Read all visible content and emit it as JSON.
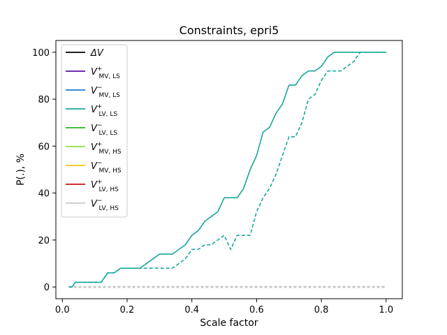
{
  "chart_data": {
    "type": "line",
    "title": "Constraints, epri5",
    "xlabel": "Scale factor",
    "ylabel": "P(.), %",
    "xlim": [
      -0.02,
      1.05
    ],
    "ylim": [
      -5,
      105
    ],
    "xticks": [
      0.0,
      0.2,
      0.4,
      0.6,
      0.8,
      1.0
    ],
    "xtick_labels": [
      "0.0",
      "0.2",
      "0.4",
      "0.6",
      "0.8",
      "1.0"
    ],
    "yticks": [
      0,
      20,
      40,
      60,
      80,
      100
    ],
    "ytick_labels": [
      "0",
      "20",
      "40",
      "60",
      "80",
      "100"
    ],
    "grid": false,
    "legend_position": "upper-left",
    "legend": [
      {
        "base": "ΔV",
        "sup": "",
        "sub": "",
        "color": "#000000"
      },
      {
        "base": "V",
        "sup": "+",
        "sub": "MV, LS",
        "color": "#5a0fa0"
      },
      {
        "base": "V",
        "sup": "−",
        "sub": "MV, LS",
        "color": "#1f77d4"
      },
      {
        "base": "V",
        "sup": "+",
        "sub": "LV, LS",
        "color": "#14a89a"
      },
      {
        "base": "V",
        "sup": "−",
        "sub": "LV, LS",
        "color": "#22b522"
      },
      {
        "base": "V",
        "sup": "+",
        "sub": "MV, HS",
        "color": "#8ee03a"
      },
      {
        "base": "V",
        "sup": "−",
        "sub": "MV, HS",
        "color": "#f2c418"
      },
      {
        "base": "V",
        "sup": "+",
        "sub": "LV, HS",
        "color": "#cc1111"
      },
      {
        "base": "V",
        "sup": "−",
        "sub": "LV, HS",
        "color": "#c8c8c8"
      }
    ],
    "series": [
      {
        "name": "V+ LV, LS",
        "style": "solid",
        "color": "#14a89a",
        "x": [
          0.02,
          0.03,
          0.04,
          0.06,
          0.08,
          0.1,
          0.12,
          0.14,
          0.16,
          0.18,
          0.2,
          0.22,
          0.24,
          0.26,
          0.28,
          0.3,
          0.32,
          0.34,
          0.36,
          0.38,
          0.4,
          0.42,
          0.44,
          0.46,
          0.48,
          0.5,
          0.52,
          0.54,
          0.56,
          0.58,
          0.6,
          0.62,
          0.64,
          0.66,
          0.68,
          0.7,
          0.72,
          0.74,
          0.76,
          0.78,
          0.8,
          0.82,
          0.84,
          0.86,
          0.88,
          0.9,
          0.92,
          0.94,
          0.96,
          0.98,
          1.0
        ],
        "y": [
          0,
          0,
          2,
          2,
          2,
          2,
          2,
          6,
          6,
          8,
          8,
          8,
          8,
          10,
          12,
          14,
          14,
          14,
          16,
          18,
          22,
          24,
          28,
          30,
          32,
          38,
          38,
          38,
          42,
          50,
          56,
          66,
          68,
          74,
          78,
          86,
          86,
          90,
          92,
          92,
          94,
          98,
          100,
          100,
          100,
          100,
          100,
          100,
          100,
          100,
          100
        ]
      },
      {
        "name": "V+ LV, LS (dashed)",
        "style": "dashed",
        "color": "#14a89a",
        "x": [
          0.02,
          0.03,
          0.04,
          0.06,
          0.08,
          0.1,
          0.12,
          0.14,
          0.16,
          0.18,
          0.2,
          0.22,
          0.24,
          0.26,
          0.28,
          0.3,
          0.32,
          0.34,
          0.36,
          0.38,
          0.4,
          0.42,
          0.44,
          0.46,
          0.48,
          0.5,
          0.52,
          0.54,
          0.56,
          0.58,
          0.6,
          0.62,
          0.64,
          0.66,
          0.68,
          0.7,
          0.72,
          0.74,
          0.76,
          0.78,
          0.8,
          0.82,
          0.84,
          0.86,
          0.88,
          0.9,
          0.92,
          0.94,
          0.96,
          0.98,
          1.0
        ],
        "y": [
          0,
          0,
          2,
          2,
          2,
          2,
          2,
          6,
          6,
          8,
          8,
          8,
          8,
          8,
          8,
          8,
          8,
          8,
          10,
          12,
          16,
          16,
          18,
          18,
          20,
          22,
          16,
          22,
          22,
          22,
          32,
          38,
          42,
          48,
          56,
          64,
          64,
          70,
          80,
          82,
          88,
          92,
          92,
          92,
          94,
          96,
          100,
          100,
          100,
          100,
          100
        ]
      },
      {
        "name": "Zero baseline (other constraints)",
        "style": "dashed",
        "color": "#c8c8c8",
        "x": [
          0.02,
          1.0
        ],
        "y": [
          0,
          0
        ]
      }
    ]
  }
}
